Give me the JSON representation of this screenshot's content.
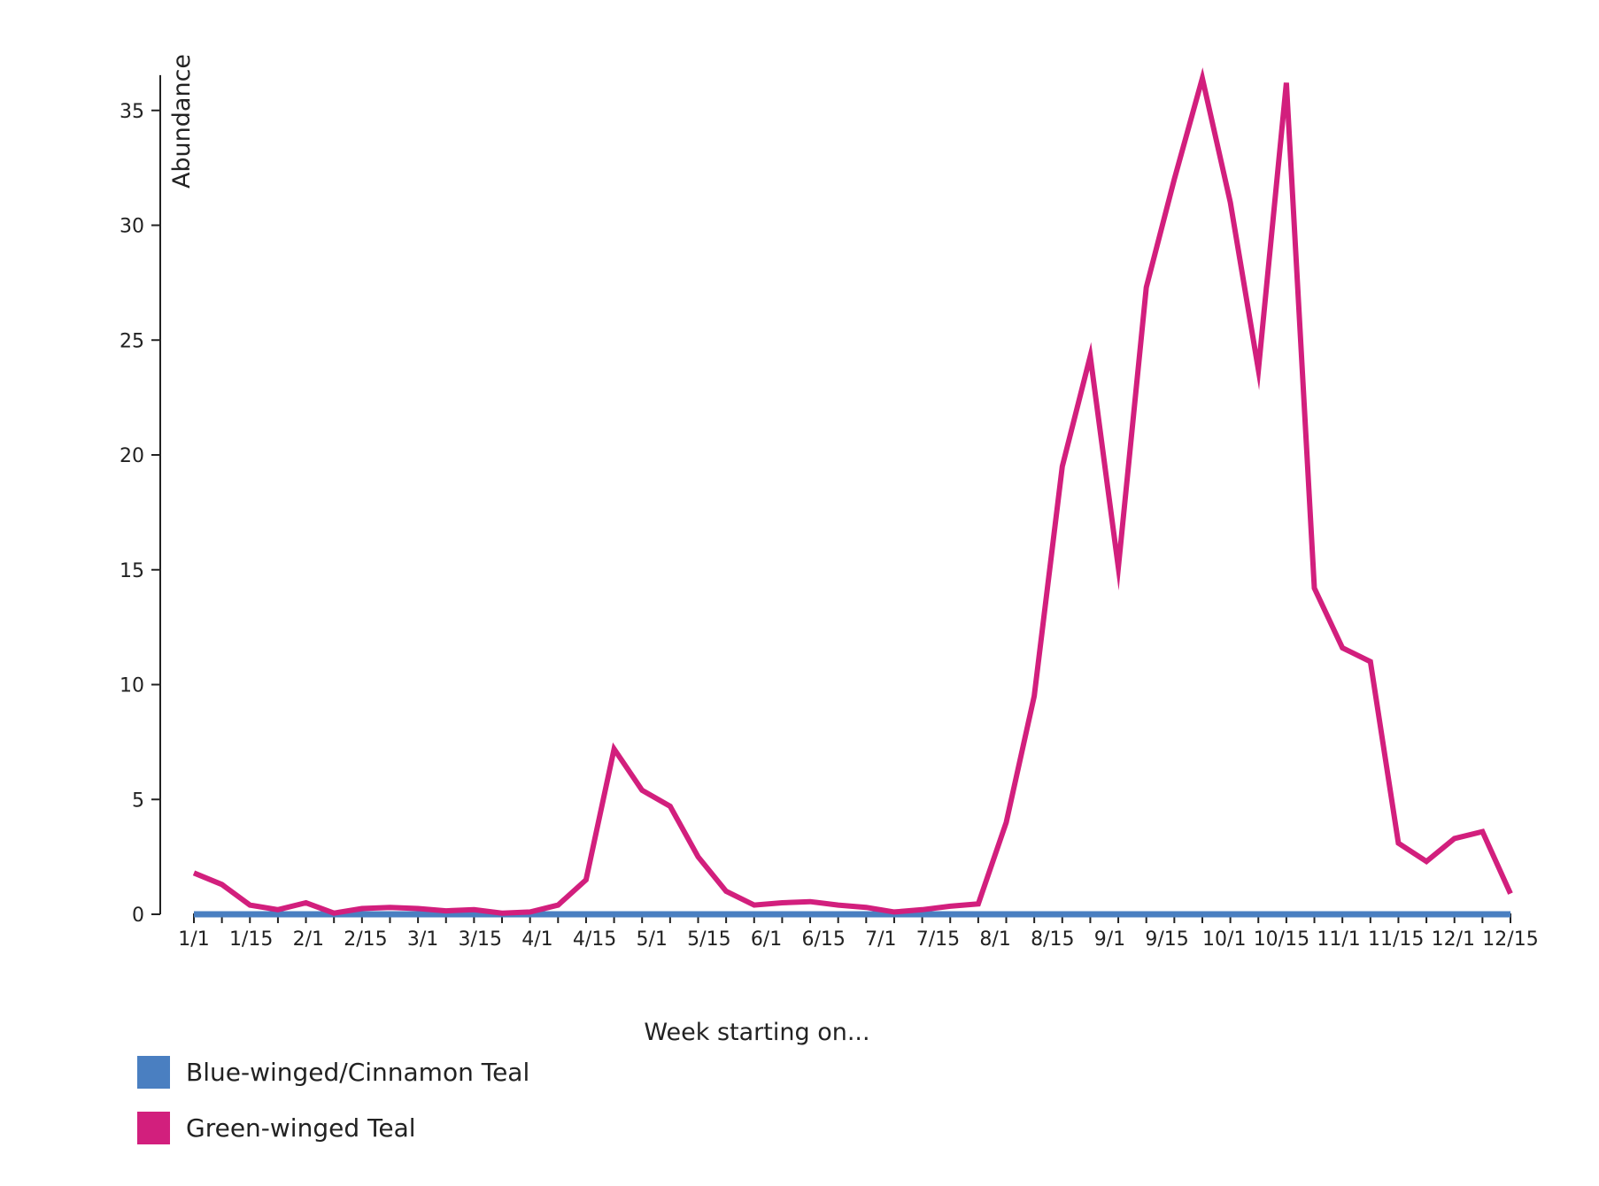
{
  "chart_data": {
    "type": "line",
    "title": "",
    "xlabel": "Week starting on...",
    "ylabel": "Abundance",
    "ylim": [
      0,
      36.5
    ],
    "yticks": [
      0,
      5,
      10,
      15,
      20,
      25,
      30,
      35
    ],
    "x_tick_labels": [
      "1/1",
      "1/15",
      "2/1",
      "2/15",
      "3/1",
      "3/15",
      "4/1",
      "4/15",
      "5/1",
      "5/15",
      "6/1",
      "6/15",
      "7/1",
      "7/15",
      "8/1",
      "8/15",
      "9/1",
      "9/15",
      "10/1",
      "10/15",
      "11/1",
      "11/15",
      "12/1",
      "12/15"
    ],
    "grid": false,
    "legend_position": "bottom-left",
    "series": [
      {
        "name": "Blue-winged/Cinnamon Teal",
        "color": "#4a7fc1",
        "values": [
          0,
          0,
          0,
          0,
          0,
          0,
          0,
          0,
          0,
          0,
          0,
          0,
          0,
          0,
          0,
          0,
          0,
          0,
          0,
          0,
          0,
          0,
          0,
          0,
          0,
          0,
          0,
          0,
          0,
          0,
          0,
          0,
          0,
          0,
          0,
          0,
          0,
          0,
          0,
          0,
          0,
          0,
          0,
          0,
          0,
          0,
          0,
          0
        ]
      },
      {
        "name": "Green-winged Teal",
        "color": "#d21f7d",
        "values": [
          1.8,
          1.3,
          0.4,
          0.2,
          0.5,
          0.05,
          0.25,
          0.3,
          0.25,
          0.15,
          0.2,
          0.05,
          0.1,
          0.4,
          1.5,
          7.2,
          5.4,
          4.7,
          2.5,
          1.0,
          0.4,
          0.5,
          0.55,
          0.4,
          0.3,
          0.1,
          0.2,
          0.35,
          0.45,
          4.0,
          9.5,
          19.5,
          24.3,
          15.1,
          27.3,
          32.0,
          36.4,
          31.0,
          23.7,
          36.2,
          14.2,
          11.6,
          11.0,
          3.1,
          2.3,
          3.3,
          3.6,
          0.9
        ]
      }
    ]
  }
}
